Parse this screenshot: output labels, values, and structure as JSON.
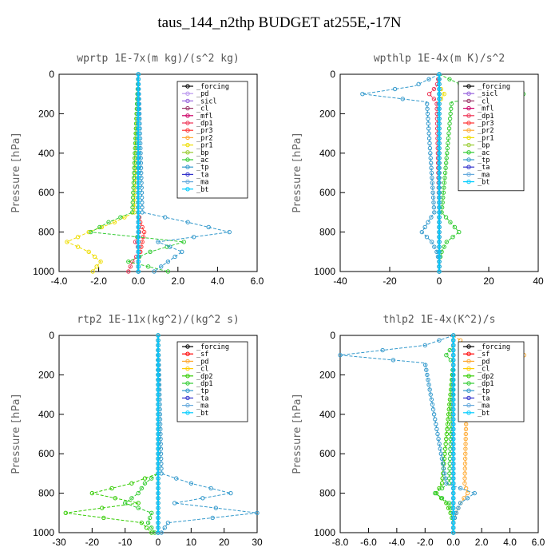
{
  "title": "taus_144_n2thp  BUDGET at255E,-17N",
  "colors": {
    "forcing": "#000000",
    "pd": "#bb99ee",
    "sicl": "#9966dd",
    "cl": "#993366",
    "mfl": "#cc0066",
    "dp1": "#ee3355",
    "pr3": "#ff3333",
    "pr2": "#ffaa33",
    "pr1": "#eedd00",
    "bp": "#99cc33",
    "ac": "#33cc33",
    "tp": "#3399cc",
    "ta": "#3333cc",
    "ma": "#66aadd",
    "bt": "#00ccff",
    "sf": "#ff0000",
    "dp2": "#33cc00",
    "cl_y": "#ffcc00"
  },
  "chart_data": [
    {
      "type": "line",
      "title": "wprtp  1E-7x(m kg)/(s^2 kg)",
      "ylabel": "Pressure [hPa]",
      "xlabel": "",
      "xlim": [
        -4,
        6
      ],
      "ylim": [
        1000,
        0
      ],
      "xticks": [
        -4,
        -2,
        0,
        2,
        4,
        6
      ],
      "xtick_labels": [
        "-4.0",
        "-2.0",
        "0.0",
        "2.0",
        "4.0",
        "6.0"
      ],
      "yticks": [
        0,
        200,
        400,
        600,
        800,
        1000
      ],
      "y": [
        700,
        750,
        800,
        850,
        900,
        950,
        1000
      ],
      "series": [
        {
          "name": "_forcing",
          "color": "#000000",
          "values": [
            0,
            0,
            0,
            0,
            0,
            0,
            0
          ]
        },
        {
          "name": "_pd",
          "color": "#bb99ee",
          "values": [
            0,
            0,
            0,
            0,
            0,
            0,
            0
          ]
        },
        {
          "name": "_sicl",
          "color": "#9966dd",
          "values": [
            0,
            0,
            0,
            0,
            0,
            0,
            0
          ]
        },
        {
          "name": "_cl",
          "color": "#993366",
          "values": [
            0,
            0,
            0,
            0,
            0,
            0,
            0
          ]
        },
        {
          "name": "_mfl",
          "color": "#cc0066",
          "values": [
            0,
            0,
            0,
            0,
            0,
            0,
            0
          ]
        },
        {
          "name": "_dp1",
          "color": "#ee3355",
          "values": [
            0,
            0,
            0.05,
            -0.15,
            0.1,
            -0.3,
            -0.5
          ]
        },
        {
          "name": "_pr3",
          "color": "#ff3333",
          "values": [
            0,
            0.1,
            0.3,
            0.2,
            0.1,
            0,
            0
          ]
        },
        {
          "name": "_pr2",
          "color": "#ffaa33",
          "values": [
            0,
            0,
            0,
            0,
            0,
            0,
            0
          ]
        },
        {
          "name": "_pr1",
          "color": "#eedd00",
          "values": [
            -0.2,
            -1.2,
            -2.5,
            -3.6,
            -2.5,
            -1.9,
            -2.3
          ]
        },
        {
          "name": "_bp",
          "color": "#99cc33",
          "values": [
            0,
            0,
            0,
            0,
            0,
            0,
            0
          ]
        },
        {
          "name": "_ac",
          "color": "#33cc33",
          "values": [
            -0.3,
            -1.5,
            -2.4,
            2.3,
            0.6,
            -0.5,
            1.5
          ]
        },
        {
          "name": "_tp",
          "color": "#3399cc",
          "values": [
            0.2,
            2.5,
            4.6,
            1.0,
            2.2,
            1.5,
            0.8
          ]
        },
        {
          "name": "_ta",
          "color": "#3333cc",
          "values": [
            0,
            0,
            0,
            0,
            0,
            0,
            0
          ]
        },
        {
          "name": "_ma",
          "color": "#66aadd",
          "values": [
            0,
            0,
            0,
            0,
            0,
            0,
            0
          ]
        },
        {
          "name": "_bt",
          "color": "#00ccff",
          "values": [
            0,
            0,
            0,
            0,
            0,
            0,
            0
          ]
        }
      ]
    },
    {
      "type": "line",
      "title": "wpthlp  1E-4x(m K)/s^2",
      "ylabel": "Pressure [hPa]",
      "xlabel": "",
      "xlim": [
        -40,
        40
      ],
      "ylim": [
        1000,
        0
      ],
      "xticks": [
        -40,
        -20,
        0,
        20,
        40
      ],
      "xtick_labels": [
        "-40",
        "-20",
        "0",
        "20",
        "40"
      ],
      "yticks": [
        0,
        200,
        400,
        600,
        800,
        1000
      ],
      "y": [
        60,
        100,
        140,
        700,
        800,
        850,
        900,
        950,
        1000
      ],
      "series": [
        {
          "name": "_forcing",
          "color": "#000000",
          "values": [
            0,
            0,
            0,
            0,
            0,
            0,
            0,
            0,
            0
          ]
        },
        {
          "name": "_sicl",
          "color": "#9966dd",
          "values": [
            0,
            0,
            0,
            0,
            0,
            0,
            0,
            0,
            0
          ]
        },
        {
          "name": "_cl",
          "color": "#993366",
          "values": [
            0,
            0,
            0,
            0,
            0,
            0,
            0,
            0,
            0
          ]
        },
        {
          "name": "_mfl",
          "color": "#cc0066",
          "values": [
            0,
            0,
            0,
            0,
            0,
            0,
            0,
            0,
            0
          ]
        },
        {
          "name": "_dp1",
          "color": "#ee3355",
          "values": [
            -1,
            -4,
            -1,
            0,
            0,
            0,
            0,
            0,
            0
          ]
        },
        {
          "name": "_pr3",
          "color": "#ff3333",
          "values": [
            0,
            0,
            0,
            0,
            0,
            0,
            0,
            0,
            0
          ]
        },
        {
          "name": "_pr2",
          "color": "#ffaa33",
          "values": [
            0,
            0,
            0,
            0,
            0,
            0,
            0,
            0,
            0
          ]
        },
        {
          "name": "_pr1",
          "color": "#eedd00",
          "values": [
            0,
            2,
            0,
            0,
            0,
            0,
            0,
            0,
            0
          ]
        },
        {
          "name": "_bp",
          "color": "#99cc33",
          "values": [
            0,
            0,
            0,
            0,
            0,
            0,
            0,
            0,
            0
          ]
        },
        {
          "name": "_ac",
          "color": "#33cc33",
          "values": [
            10,
            34,
            5,
            1,
            8,
            3,
            1,
            0,
            0
          ]
        },
        {
          "name": "_tp",
          "color": "#3399cc",
          "values": [
            -10,
            -31,
            -5,
            -2,
            -7,
            -3,
            -1,
            0,
            0
          ]
        },
        {
          "name": "_ta",
          "color": "#3333cc",
          "values": [
            0,
            0,
            0,
            0,
            0,
            0,
            0,
            0,
            0
          ]
        },
        {
          "name": "_ma",
          "color": "#66aadd",
          "values": [
            0,
            0,
            0,
            0,
            0,
            0,
            0,
            0,
            0
          ]
        },
        {
          "name": "_bt",
          "color": "#00ccff",
          "values": [
            0,
            0,
            0,
            0,
            0,
            0,
            0,
            0,
            0
          ]
        }
      ]
    },
    {
      "type": "line",
      "title": "rtp2  1E-11x(kg^2)/(kg^2 s)",
      "ylabel": "Pressure [hPa]",
      "xlabel": "",
      "xlim": [
        -30,
        30
      ],
      "ylim": [
        1000,
        0
      ],
      "xticks": [
        -30,
        -20,
        -10,
        0,
        10,
        20,
        30
      ],
      "xtick_labels": [
        "-30",
        "-20",
        "-10",
        "0",
        "10",
        "20",
        "30"
      ],
      "yticks": [
        0,
        200,
        400,
        600,
        800,
        1000
      ],
      "y": [
        700,
        750,
        800,
        850,
        900,
        950,
        1000
      ],
      "series": [
        {
          "name": "_forcing",
          "color": "#000000",
          "values": [
            0,
            0,
            0,
            0,
            0,
            0,
            0
          ]
        },
        {
          "name": "_sf",
          "color": "#ff0000",
          "values": [
            0,
            0,
            0,
            0,
            0,
            0,
            0
          ]
        },
        {
          "name": "_pd",
          "color": "#ffaa33",
          "values": [
            0,
            0,
            0,
            0,
            0,
            0,
            0
          ]
        },
        {
          "name": "_cl",
          "color": "#ffcc00",
          "values": [
            0,
            0,
            0,
            0,
            0,
            0,
            0
          ]
        },
        {
          "name": "_dp2",
          "color": "#33cc00",
          "values": [
            0,
            -8,
            -20,
            -6,
            -28,
            -5,
            -2
          ]
        },
        {
          "name": "_dp1",
          "color": "#33cc33",
          "values": [
            0,
            -4,
            -6,
            -10,
            -2,
            -3,
            -1
          ]
        },
        {
          "name": "_tp",
          "color": "#3399cc",
          "values": [
            1,
            10,
            22,
            5,
            30,
            3,
            1
          ]
        },
        {
          "name": "_ta",
          "color": "#3333cc",
          "values": [
            0,
            0,
            0,
            0,
            0,
            0,
            0
          ]
        },
        {
          "name": "_ma",
          "color": "#66aadd",
          "values": [
            0,
            0,
            0,
            0,
            0,
            0,
            0
          ]
        },
        {
          "name": "_bt",
          "color": "#00ccff",
          "values": [
            0,
            0,
            0,
            0,
            0,
            0,
            0
          ]
        }
      ]
    },
    {
      "type": "line",
      "title": "thlp2  1E-4x(K^2)/s",
      "ylabel": "Pressure [hPa]",
      "xlabel": "",
      "xlim": [
        -8,
        6
      ],
      "ylim": [
        1000,
        0
      ],
      "xticks": [
        -8,
        -6,
        -4,
        -2,
        0,
        2,
        4,
        6
      ],
      "xtick_labels": [
        "-8.0",
        "-6.0",
        "-4.0",
        "-2.0",
        "0.0",
        "2.0",
        "4.0",
        "6.0"
      ],
      "yticks": [
        0,
        200,
        400,
        600,
        800,
        1000
      ],
      "y": [
        50,
        100,
        140,
        750,
        800,
        850,
        900,
        950,
        1000
      ],
      "series": [
        {
          "name": "_forcing",
          "color": "#000000",
          "values": [
            0,
            0,
            0,
            0,
            0,
            0,
            0,
            0,
            0
          ]
        },
        {
          "name": "_sf",
          "color": "#ff0000",
          "values": [
            0,
            0,
            0,
            0,
            0,
            0,
            0,
            0,
            0
          ]
        },
        {
          "name": "_pd",
          "color": "#ffaa33",
          "values": [
            1,
            5,
            1,
            0.8,
            1,
            0.5,
            0.2,
            0,
            0
          ]
        },
        {
          "name": "_cl",
          "color": "#ffcc00",
          "values": [
            0,
            0,
            0,
            0,
            0,
            0,
            0,
            0,
            0
          ]
        },
        {
          "name": "_dp2",
          "color": "#33cc00",
          "values": [
            0,
            0,
            0,
            -0.8,
            -1.2,
            -0.5,
            -0.2,
            0,
            0
          ]
        },
        {
          "name": "_dp1",
          "color": "#33cc33",
          "values": [
            0,
            -0.5,
            0,
            -0.3,
            -1.3,
            -0.3,
            0,
            0,
            0
          ]
        },
        {
          "name": "_tp",
          "color": "#3399cc",
          "values": [
            -2,
            -8,
            -2,
            -0.5,
            1.5,
            0.5,
            0.2,
            0,
            0
          ]
        },
        {
          "name": "_ta",
          "color": "#3333cc",
          "values": [
            0,
            0,
            0,
            0,
            0,
            0,
            0,
            0,
            0
          ]
        },
        {
          "name": "_ma",
          "color": "#66aadd",
          "values": [
            0,
            0,
            0,
            0,
            0,
            0,
            0,
            0,
            0
          ]
        },
        {
          "name": "_bt",
          "color": "#00ccff",
          "values": [
            0,
            0,
            0,
            0,
            0,
            0,
            0,
            0,
            0
          ]
        }
      ]
    }
  ]
}
